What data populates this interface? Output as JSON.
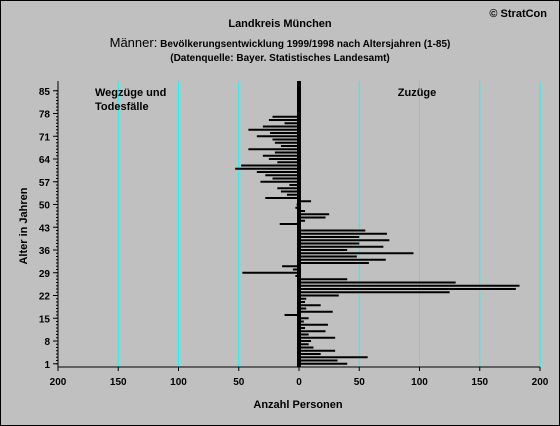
{
  "chart_data": {
    "type": "bar",
    "orientation": "horizontal",
    "title_line1": "Landkreis München",
    "title_prefix": "Männer:",
    "title_main": " Bevölkerungsentwicklung 1999/1998  nach Altersjahren (1-85)",
    "title_line3": "(Datenquelle: Bayer. Statistisches Landesamt)",
    "copyright": "© StratCon",
    "xlabel": "Anzahl Personen",
    "ylabel": "Alter in Jahren",
    "annotation_left_line1": "Wegzüge und",
    "annotation_left_line2": "Todesfälle",
    "annotation_right": "Zuzüge",
    "colors": {
      "annotation_left": "#ff0000",
      "annotation_right": "#008000",
      "grid": "#00ffff",
      "bars": "#000000",
      "background": "#c0c0c0"
    },
    "xlim": [
      -200,
      200
    ],
    "ylim": [
      0,
      88
    ],
    "x_ticks": [
      -200,
      -150,
      -100,
      -50,
      0,
      50,
      100,
      150,
      200
    ],
    "x_tick_labels": [
      "200",
      "150",
      "100",
      "50",
      "0",
      "50",
      "100",
      "150",
      "200"
    ],
    "y_ticks": [
      1,
      8,
      15,
      22,
      29,
      36,
      43,
      50,
      57,
      64,
      71,
      78,
      85
    ],
    "series": [
      {
        "age": [
          1,
          2,
          3,
          4,
          5,
          6,
          7,
          8,
          9,
          10,
          11,
          12,
          13,
          14,
          15,
          16,
          17,
          18,
          19,
          20,
          21,
          22,
          23,
          24,
          25,
          26,
          27,
          28,
          29,
          30,
          31,
          32,
          33,
          34,
          35,
          36,
          37,
          38,
          39,
          40,
          41,
          42,
          43,
          44,
          45,
          46,
          47,
          48,
          49,
          50,
          51,
          52,
          53,
          54,
          55,
          56,
          57,
          58,
          59,
          60,
          61,
          62,
          63,
          64,
          65,
          66,
          67,
          68,
          69,
          70,
          71,
          72,
          73,
          74,
          75,
          76,
          77,
          78,
          79,
          80,
          81,
          82,
          83,
          84,
          85
        ],
        "values": [
          40,
          32,
          57,
          18,
          30,
          12,
          8,
          10,
          30,
          8,
          22,
          5,
          24,
          4,
          8,
          -12,
          28,
          6,
          18,
          5,
          6,
          33,
          125,
          180,
          183,
          130,
          40,
          -3,
          -47,
          -5,
          -14,
          58,
          72,
          48,
          95,
          40,
          70,
          50,
          75,
          50,
          73,
          55,
          0,
          -16,
          5,
          22,
          25,
          5,
          -3,
          -2,
          10,
          -28,
          -10,
          -15,
          -18,
          -8,
          -32,
          -22,
          -28,
          -35,
          -53,
          -48,
          -18,
          -25,
          -30,
          -20,
          -42,
          -15,
          -20,
          -22,
          -35,
          -24,
          -42,
          -30,
          -12,
          -25,
          -22,
          0,
          0,
          0,
          0,
          0,
          0,
          0,
          0
        ]
      }
    ]
  }
}
